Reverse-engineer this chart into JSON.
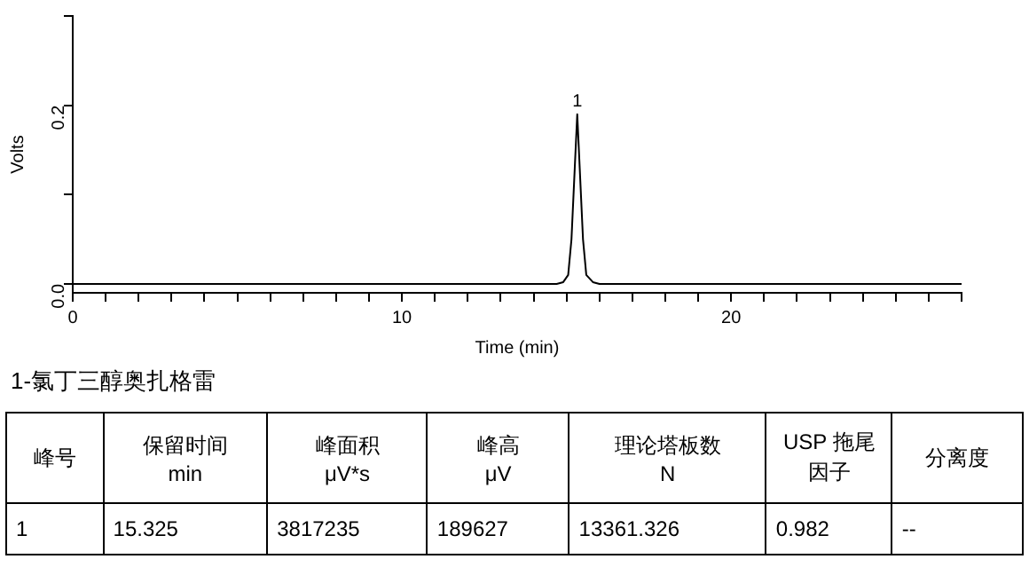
{
  "chart_data": {
    "type": "line",
    "xlabel": "Time (min)",
    "ylabel": "Volts",
    "x": [
      0,
      14.7,
      14.9,
      15.05,
      15.15,
      15.25,
      15.325,
      15.4,
      15.5,
      15.6,
      15.8,
      16.0,
      27
    ],
    "series": [
      {
        "color": "#000000",
        "values": [
          0,
          0,
          0.002,
          0.01,
          0.05,
          0.13,
          0.19,
          0.13,
          0.05,
          0.01,
          0.002,
          0,
          0
        ]
      }
    ],
    "xlim": [
      0,
      27
    ],
    "xticks": [
      0,
      {
        "value": 1,
        "label": null
      },
      {
        "value": 2,
        "label": null
      },
      {
        "value": 3,
        "label": null
      },
      {
        "value": 4,
        "label": null
      },
      {
        "value": 5,
        "label": null
      },
      {
        "value": 6,
        "label": null
      },
      {
        "value": 7,
        "label": null
      },
      {
        "value": 8,
        "label": null
      },
      {
        "value": 9,
        "label": null
      },
      10,
      {
        "value": 11,
        "label": null
      },
      {
        "value": 12,
        "label": null
      },
      {
        "value": 13,
        "label": null
      },
      {
        "value": 14,
        "label": null
      },
      {
        "value": 15,
        "label": null
      },
      {
        "value": 16,
        "label": null
      },
      {
        "value": 17,
        "label": null
      },
      {
        "value": 18,
        "label": null
      },
      {
        "value": 19,
        "label": null
      },
      20,
      {
        "value": 21,
        "label": null
      },
      {
        "value": 22,
        "label": null
      },
      {
        "value": 23,
        "label": null
      },
      {
        "value": 24,
        "label": null
      },
      {
        "value": 25,
        "label": null
      },
      {
        "value": 26,
        "label": null
      },
      {
        "value": 27,
        "label": null
      }
    ],
    "ylim": [
      -0.01,
      0.3
    ],
    "yticks": [
      {
        "value": 0,
        "label": "0.0"
      },
      {
        "value": 0.1,
        "label": null
      },
      0.2,
      {
        "value": 0.3,
        "label": null
      }
    ],
    "grid": false,
    "legend": false,
    "annotations": [
      {
        "text": "1",
        "x": 15.325,
        "y": 0.19
      },
      "1-氯丁三醇奥扎格雷",
      "峰号",
      "保留时间\nmin",
      "峰面积\nμV*s",
      "峰高\nμV",
      "理论塔板数\nN",
      "USP 拖尾因子",
      "分离度",
      "1",
      "15.325",
      "3817235",
      "189627",
      "13361.326",
      "0.982",
      "--"
    ]
  }
}
